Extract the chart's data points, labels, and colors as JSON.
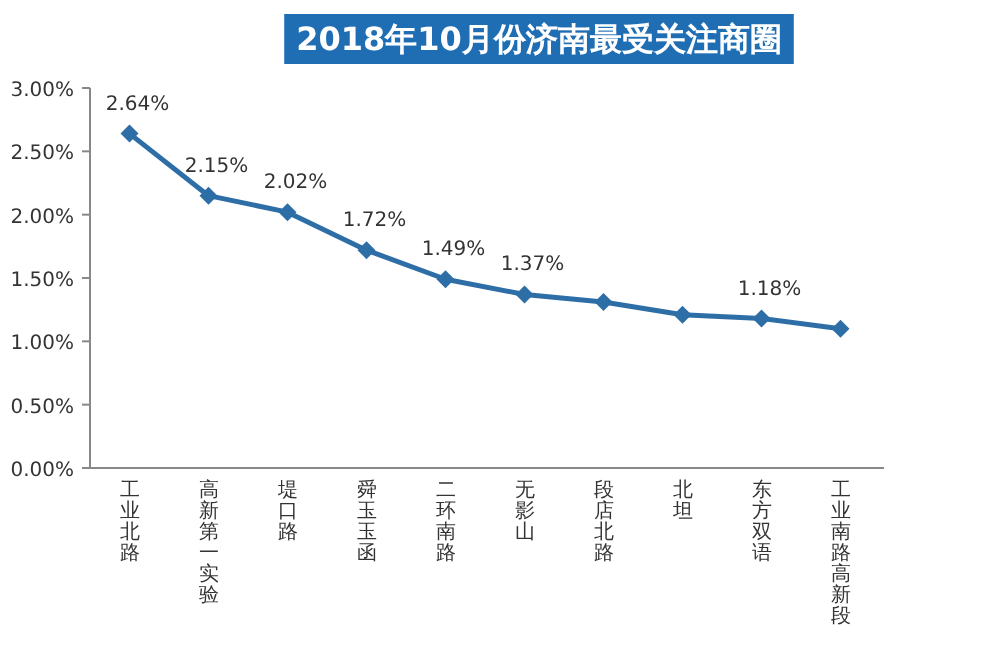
{
  "chart_data": {
    "type": "line",
    "title": "2018年10月份济南最受关注商圈",
    "categories": [
      "工业北路",
      "高新第一实验",
      "堤口路",
      "舜玉玉函",
      "二环南路",
      "无影山",
      "段店北路",
      "北坦",
      "东方双语",
      "工业南路高新段"
    ],
    "series": [
      {
        "color": "#2e6ea6",
        "values": [
          2.64,
          2.15,
          2.02,
          1.72,
          1.49,
          1.37,
          1.31,
          1.21,
          1.18,
          1.1
        ],
        "value_labels": [
          "2.64%",
          "2.15%",
          "2.02%",
          "1.72%",
          "1.49%",
          "1.37%",
          null,
          null,
          "1.18%",
          null
        ]
      }
    ],
    "ylim": [
      0,
      3
    ],
    "yticks": [
      {
        "value": 0,
        "label": "0.00%"
      },
      {
        "value": 0.5,
        "label": "0.50%"
      },
      {
        "value": 1,
        "label": "1.00%"
      },
      {
        "value": 1.5,
        "label": "1.50%"
      },
      {
        "value": 2,
        "label": "2.00%"
      },
      {
        "value": 2.5,
        "label": "2.50%"
      },
      {
        "value": 3,
        "label": "3.00%"
      }
    ],
    "marker": "diamond",
    "line_style": "solid",
    "grid": false
  }
}
